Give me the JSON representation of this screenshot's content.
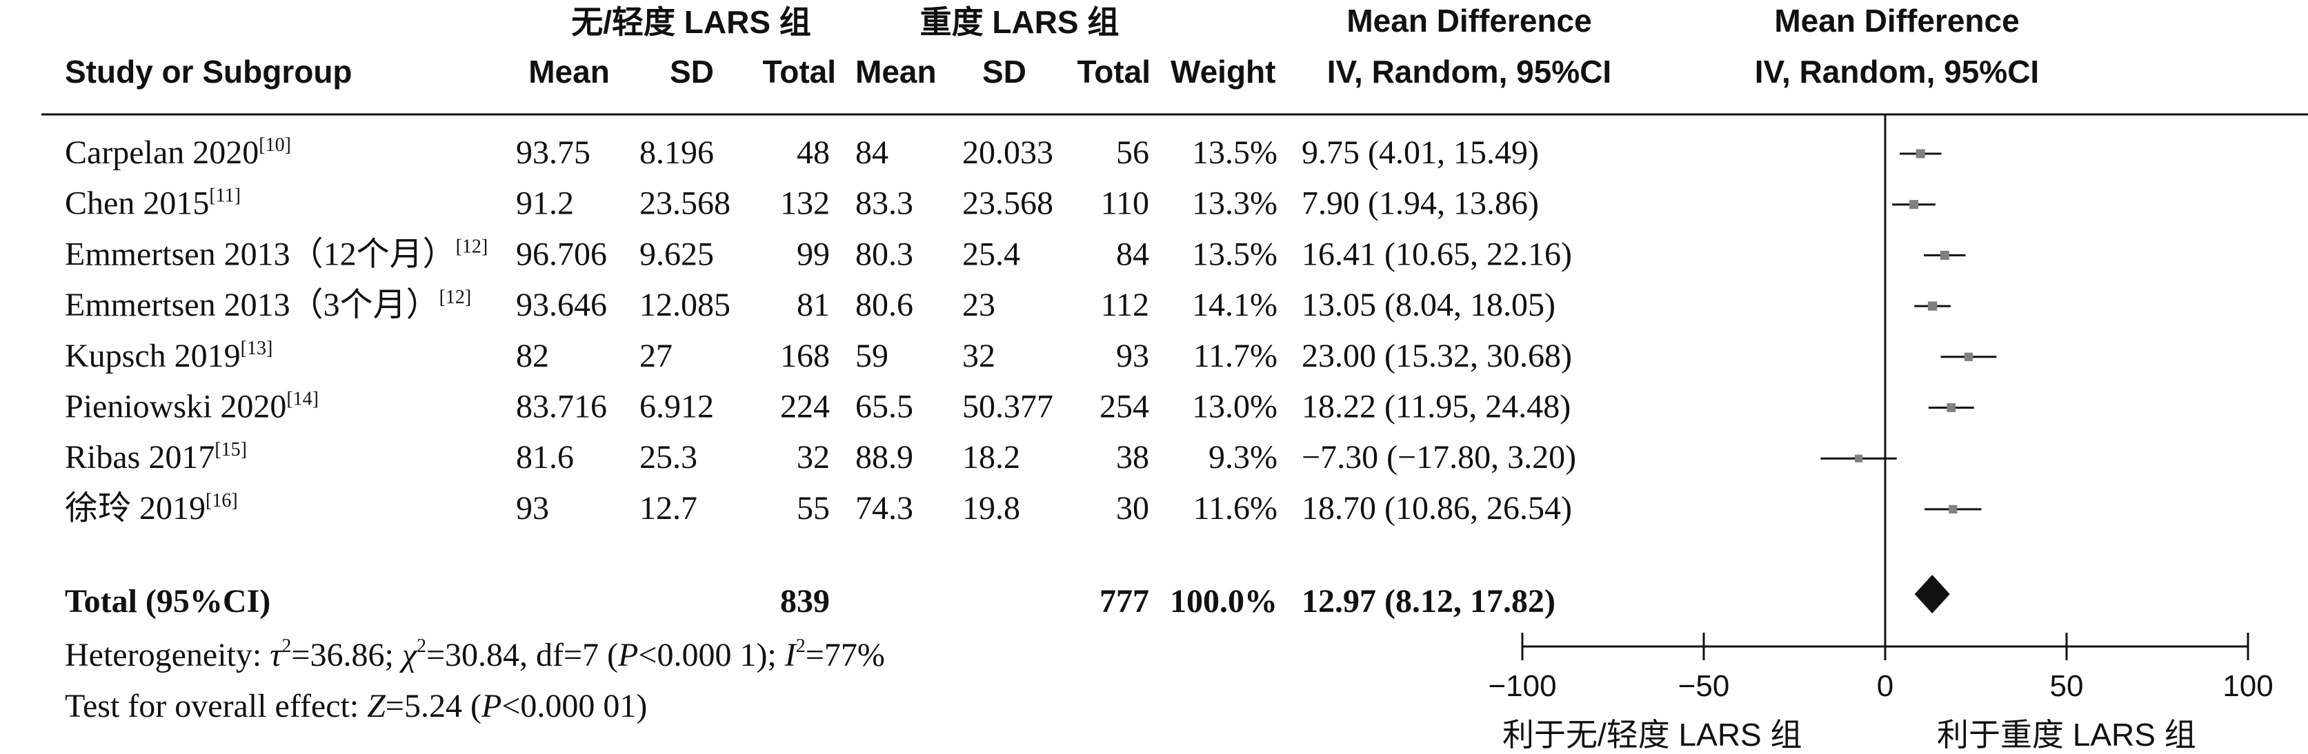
{
  "headers": {
    "group1": "无/轻度 LARS 组",
    "group2": "重度 LARS 组",
    "md_top": "Mean Difference",
    "md_sub": "IV, Random, 95%CI",
    "plot_top": "Mean Difference",
    "plot_sub": "IV, Random, 95%CI",
    "study": "Study or Subgroup",
    "mean": "Mean",
    "sd": "SD",
    "total": "Total",
    "weight": "Weight"
  },
  "rows": [
    {
      "study": "Carpelan 2020",
      "ref": "[10]",
      "mean1": "93.75",
      "sd1": "8.196",
      "n1": "48",
      "mean2": "84",
      "sd2": "20.033",
      "n2": "56",
      "weight": "13.5%",
      "ci_text": "9.75 (4.01, 15.49)"
    },
    {
      "study": "Chen 2015",
      "ref": "[11]",
      "mean1": "91.2",
      "sd1": "23.568",
      "n1": "132",
      "mean2": "83.3",
      "sd2": "23.568",
      "n2": "110",
      "weight": "13.3%",
      "ci_text": "7.90 (1.94, 13.86)"
    },
    {
      "study": "Emmertsen 2013（12个月）",
      "ref": "[12]",
      "mean1": "96.706",
      "sd1": "9.625",
      "n1": "99",
      "mean2": "80.3",
      "sd2": "25.4",
      "n2": "84",
      "weight": "13.5%",
      "ci_text": "16.41 (10.65, 22.16)"
    },
    {
      "study": "Emmertsen 2013（3个月）",
      "ref": "[12]",
      "mean1": "93.646",
      "sd1": "12.085",
      "n1": "81",
      "mean2": "80.6",
      "sd2": "23",
      "n2": "112",
      "weight": "14.1%",
      "ci_text": "13.05 (8.04, 18.05)"
    },
    {
      "study": "Kupsch 2019",
      "ref": "[13]",
      "mean1": "82",
      "sd1": "27",
      "n1": "168",
      "mean2": "59",
      "sd2": "32",
      "n2": "93",
      "weight": "11.7%",
      "ci_text": "23.00 (15.32, 30.68)"
    },
    {
      "study": "Pieniowski 2020",
      "ref": "[14]",
      "mean1": "83.716",
      "sd1": "6.912",
      "n1": "224",
      "mean2": "65.5",
      "sd2": "50.377",
      "n2": "254",
      "weight": "13.0%",
      "ci_text": "18.22 (11.95, 24.48)"
    },
    {
      "study": "Ribas 2017",
      "ref": "[15]",
      "mean1": "81.6",
      "sd1": "25.3",
      "n1": "32",
      "mean2": "88.9",
      "sd2": "18.2",
      "n2": "38",
      "weight": "9.3%",
      "ci_text": "−7.30 (−17.80, 3.20)"
    },
    {
      "study": "徐玲 2019",
      "ref": "[16]",
      "mean1": "93",
      "sd1": "12.7",
      "n1": "55",
      "mean2": "74.3",
      "sd2": "19.8",
      "n2": "30",
      "weight": "11.6%",
      "ci_text": "18.70 (10.86, 26.54)"
    }
  ],
  "total": {
    "label": "Total (95%CI)",
    "n1": "839",
    "n2": "777",
    "weight": "100.0%",
    "ci_text": "12.97 (8.12, 17.82)"
  },
  "heterogeneity": {
    "label": "Heterogeneity: ",
    "tau": "τ",
    "tau_val": "=36.86; ",
    "chi": "χ",
    "chi_val": "=30.84, df=7 (",
    "p": "P",
    "p_val": "<0.000 1); ",
    "i": "I",
    "i_val": "=77%",
    "sup2": "2"
  },
  "overall": {
    "label": "Test for overall effect: ",
    "z": "Z",
    "z_val": "=5.24 (",
    "p": "P",
    "p_val": "<0.000 01)"
  },
  "axis": {
    "ticks": [
      "−100",
      "−50",
      "0",
      "50",
      "100"
    ],
    "favours_left": "利于无/轻度 LARS 组",
    "favours_right": "利于重度 LARS 组"
  },
  "chart_data": {
    "type": "forest",
    "xlim": [
      -100,
      100
    ],
    "ticks": [
      -100,
      -50,
      0,
      50,
      100
    ],
    "studies": [
      {
        "name": "Carpelan 2020",
        "md": 9.75,
        "lo": 4.01,
        "hi": 15.49,
        "weight": 13.5
      },
      {
        "name": "Chen 2015",
        "md": 7.9,
        "lo": 1.94,
        "hi": 13.86,
        "weight": 13.3
      },
      {
        "name": "Emmertsen 2013（12个月）",
        "md": 16.41,
        "lo": 10.65,
        "hi": 22.16,
        "weight": 13.5
      },
      {
        "name": "Emmertsen 2013（3个月）",
        "md": 13.05,
        "lo": 8.04,
        "hi": 18.05,
        "weight": 14.1
      },
      {
        "name": "Kupsch 2019",
        "md": 23.0,
        "lo": 15.32,
        "hi": 30.68,
        "weight": 11.7
      },
      {
        "name": "Pieniowski 2020",
        "md": 18.22,
        "lo": 11.95,
        "hi": 24.48,
        "weight": 13.0
      },
      {
        "name": "Ribas 2017",
        "md": -7.3,
        "lo": -17.8,
        "hi": 3.2,
        "weight": 9.3
      },
      {
        "name": "徐玲 2019",
        "md": 18.7,
        "lo": 10.86,
        "hi": 26.54,
        "weight": 11.6
      }
    ],
    "pooled": {
      "md": 12.97,
      "lo": 8.12,
      "hi": 17.82
    },
    "colors": {
      "marker": "#808080",
      "line": "#111111",
      "diamond": "#111111"
    }
  }
}
